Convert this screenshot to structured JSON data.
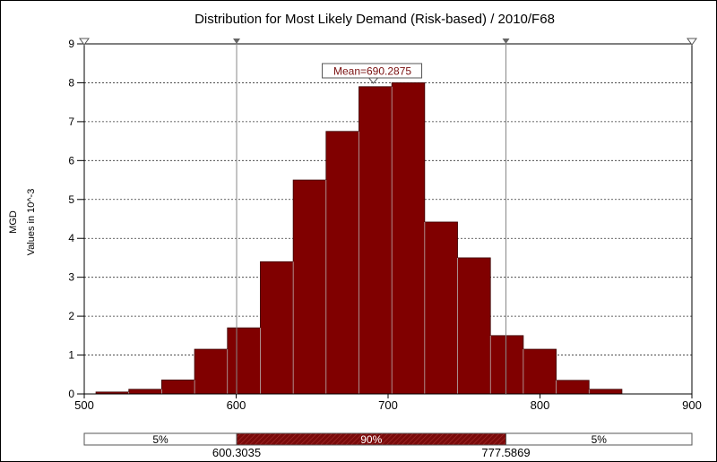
{
  "chart_data": {
    "type": "bar",
    "title": "Distribution for Most Likely Demand (Risk-based) / 2010/F68",
    "xlabel": "",
    "ylabel": "MGD",
    "ylabel_sub": "Values in 10^-3",
    "xlim": [
      500,
      900
    ],
    "ylim": [
      0,
      9
    ],
    "xticks": [
      "500",
      "600",
      "700",
      "800",
      "900"
    ],
    "yticks": [
      "0",
      "1",
      "2",
      "3",
      "4",
      "5",
      "6",
      "7",
      "8",
      "9"
    ],
    "grid": true,
    "bin_start": 507.7,
    "bin_width": 21.64,
    "values": [
      0.05,
      0.12,
      0.36,
      1.15,
      1.7,
      3.4,
      5.5,
      6.75,
      7.9,
      8.0,
      4.42,
      3.5,
      1.5,
      1.15,
      0.35,
      0.12
    ],
    "bar_color": "#800000",
    "mean_label": "Mean=690.2875",
    "mean": 690.2875,
    "delimiters": [
      600.3035,
      777.5869
    ],
    "delimiter_labels": [
      "600.3035",
      "777.5869"
    ],
    "percent_bar": {
      "left": "5%",
      "middle": "90%",
      "right": "5%"
    }
  }
}
